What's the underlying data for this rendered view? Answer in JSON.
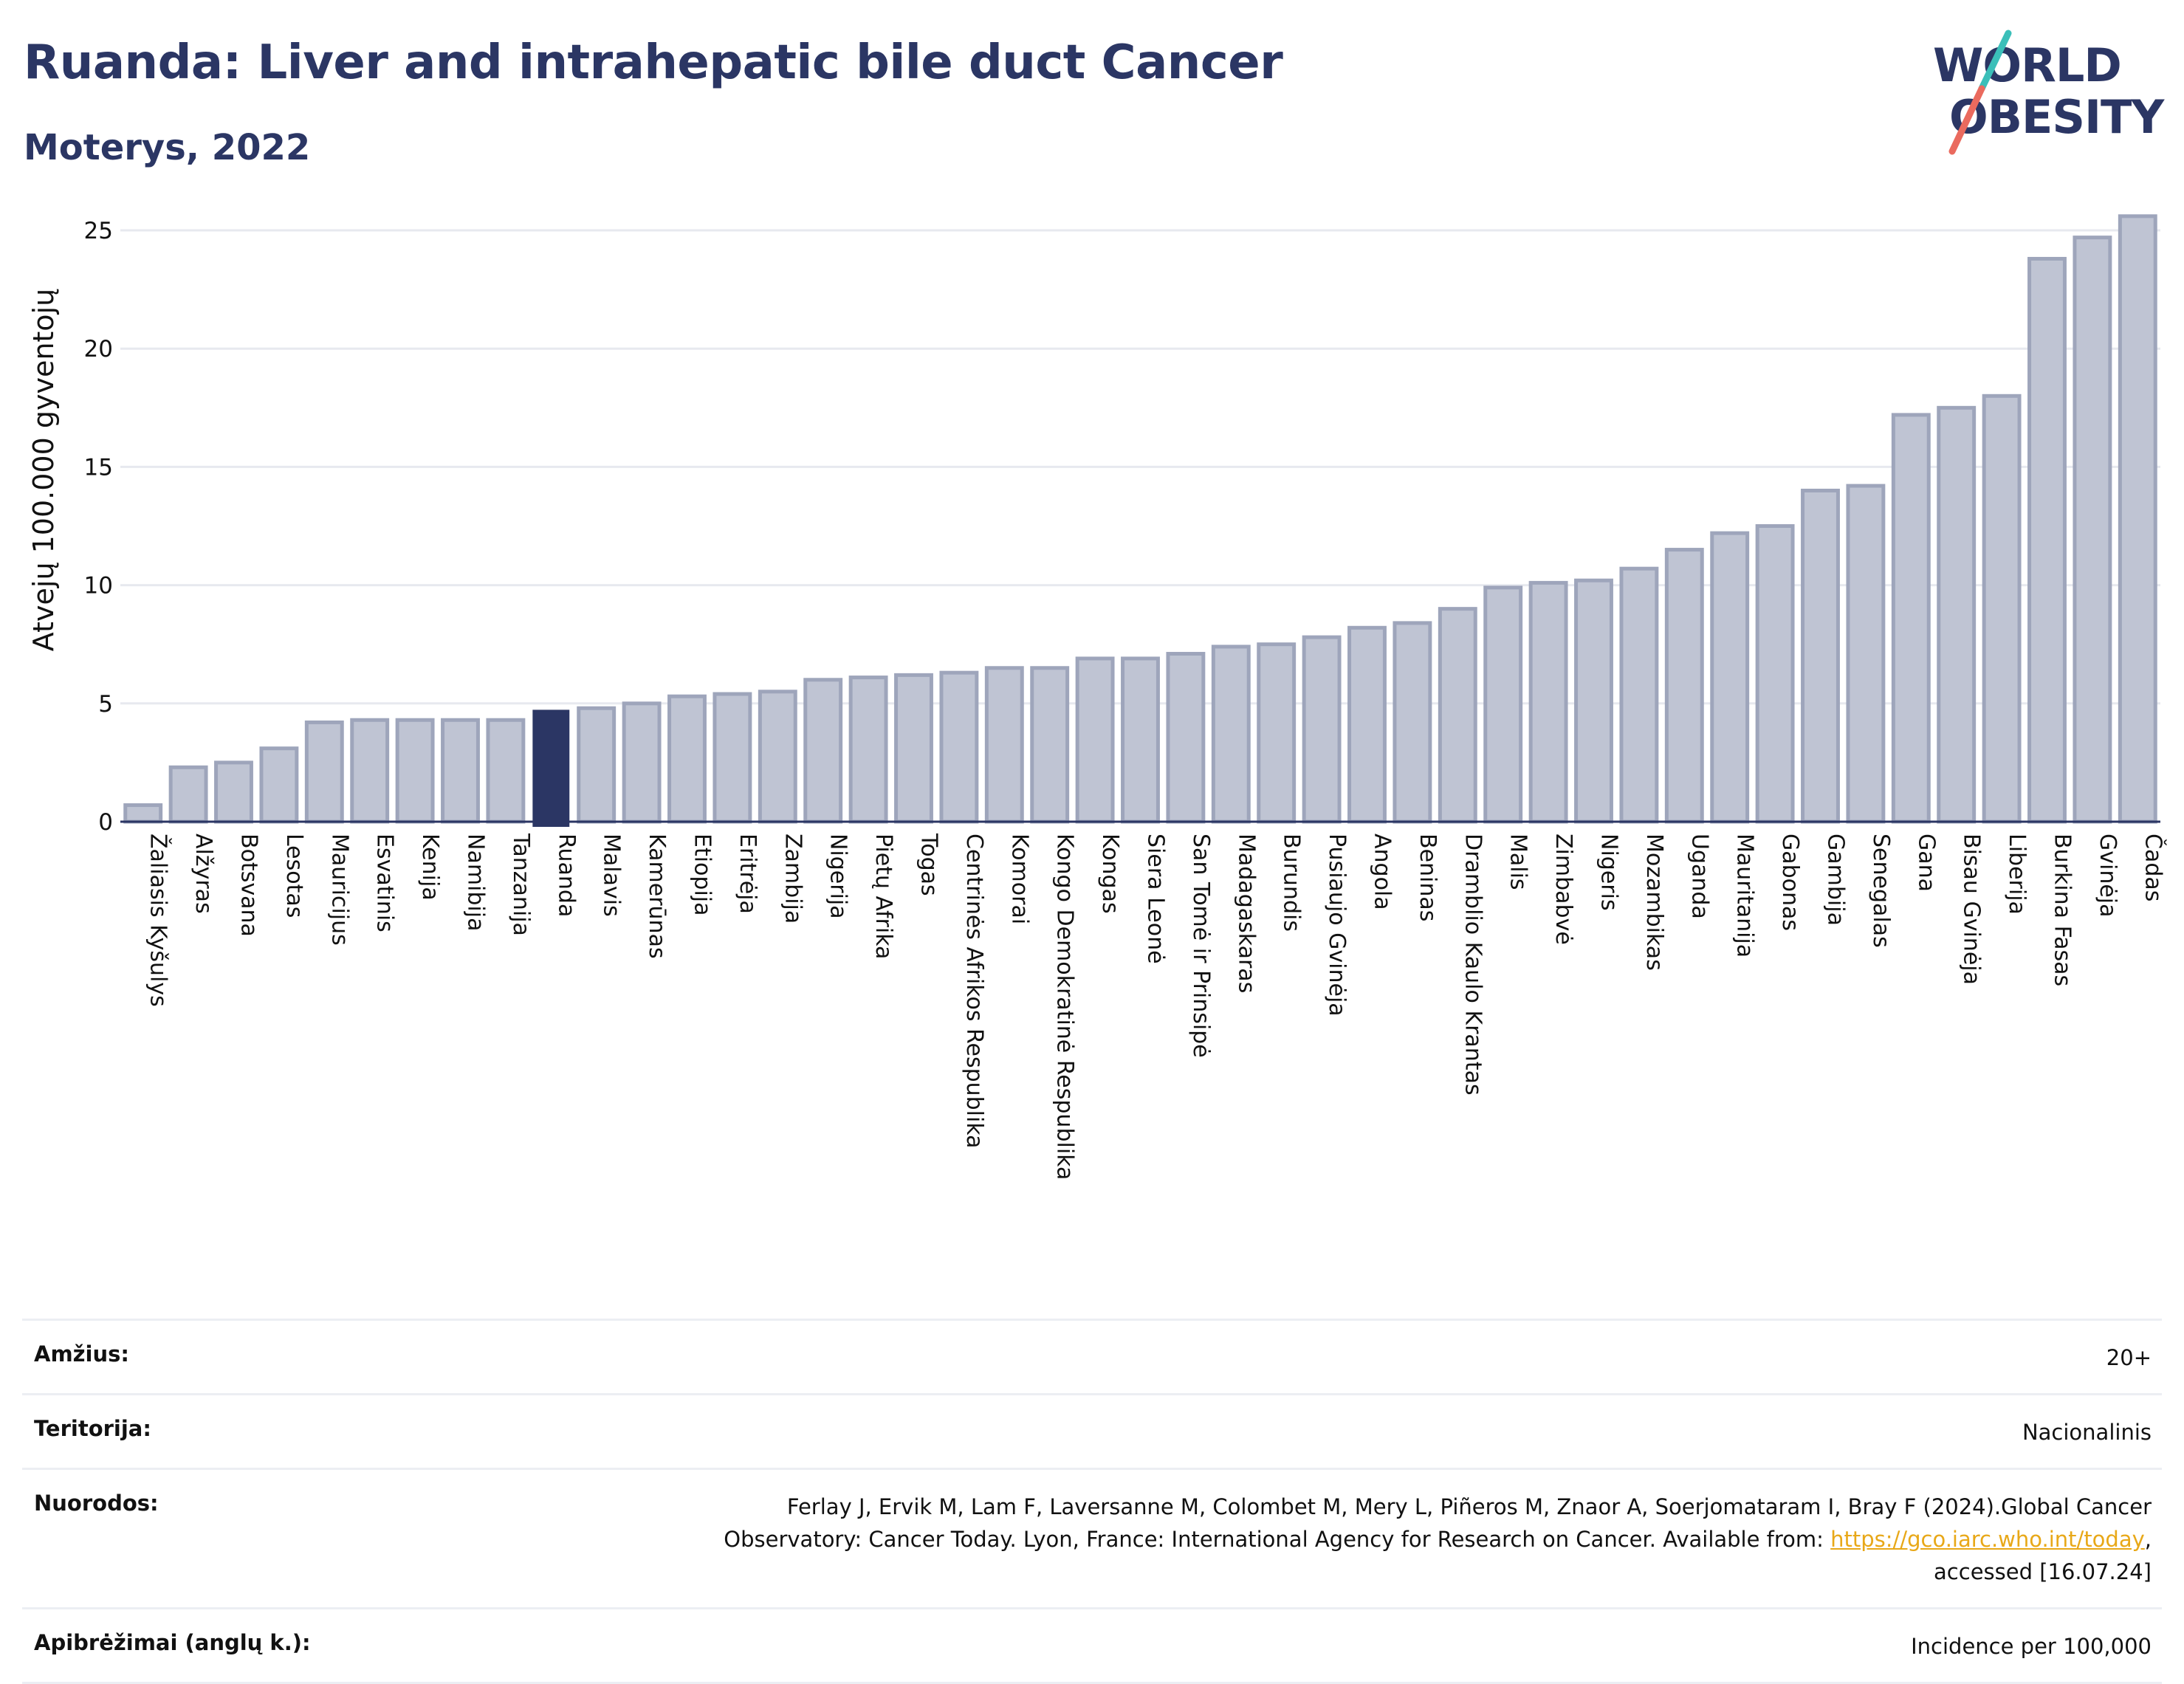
{
  "header": {
    "title": "Ruanda: Liver and intrahepatic bile duct Cancer",
    "subtitle": "Moterys, 2022"
  },
  "logo": {
    "line1": "WORLD",
    "line2": "OBESITY",
    "colors": {
      "text": "#2b3664",
      "slash_teal": "#3bbfb9",
      "slash_red": "#ea6a5e"
    }
  },
  "colors": {
    "bar": "#bfc4d3",
    "bar_stroke": "#9ea5bb",
    "highlight": "#2b3664",
    "grid": "#e7e9ef",
    "axis": "#2b3664"
  },
  "chart_data": {
    "type": "bar",
    "ylabel": "Atvejų 100.000 gyventojų",
    "xlabel": "",
    "ylim": [
      0,
      26
    ],
    "yticks": [
      0,
      5,
      10,
      15,
      20,
      25
    ],
    "grid": true,
    "highlight": "Ruanda",
    "categories": [
      "Žaliasis Kyšulys",
      "Alžyras",
      "Botsvana",
      "Lesotas",
      "Mauricijus",
      "Esvatinis",
      "Kenija",
      "Namibija",
      "Tanzanija",
      "Ruanda",
      "Malavis",
      "Kamerūnas",
      "Etiopija",
      "Eritrėja",
      "Zambija",
      "Nigerija",
      "Pietų Afrika",
      "Togas",
      "Centrinės Afrikos Respublika",
      "Komorai",
      "Kongo Demokratinė Respublika",
      "Kongas",
      "Siera Leonė",
      "San Tomė ir Prinsipė",
      "Madagaskaras",
      "Burundis",
      "Pusiaujo Gvinėja",
      "Angola",
      "Beninas",
      "Dramblio Kaulo Krantas",
      "Malis",
      "Zimbabvė",
      "Nigeris",
      "Mozambikas",
      "Uganda",
      "Mauritanija",
      "Gabonas",
      "Gambija",
      "Senegalas",
      "Gana",
      "Bisau Gvinėja",
      "Liberija",
      "Burkina Fasas",
      "Gvinėja",
      "Čadas"
    ],
    "values": [
      0.7,
      2.3,
      2.5,
      3.1,
      4.2,
      4.3,
      4.3,
      4.3,
      4.3,
      4.7,
      4.8,
      5.0,
      5.3,
      5.4,
      5.5,
      6.0,
      6.1,
      6.2,
      6.3,
      6.5,
      6.5,
      6.9,
      6.9,
      7.1,
      7.4,
      7.5,
      7.8,
      8.2,
      8.4,
      9.0,
      9.9,
      10.1,
      10.2,
      10.7,
      11.5,
      12.2,
      12.5,
      14.0,
      14.2,
      17.2,
      17.5,
      18.0,
      23.8,
      24.7,
      25.6
    ]
  },
  "info": {
    "rows": [
      {
        "key": "Amžius:",
        "value": "20+"
      },
      {
        "key": "Teritorija:",
        "value": "Nacionalinis"
      },
      {
        "key": "Nuorodos:",
        "value_line1": "Ferlay J, Ervik M, Lam F, Laversanne M, Colombet M, Mery L, Piñeros M, Znaor A, Soerjomataram I, Bray F (2024).Global Cancer",
        "value_line2": "Observatory: Cancer Today. Lyon, France: International Agency for Research on Cancer. Available from: ",
        "link": "https://gco.iarc.who.int/today",
        "value_line2_end": ",",
        "value_line3": "accessed [16.07.24]"
      },
      {
        "key": "Apibrėžimai (anglų k.):",
        "value": "Incidence per 100,000"
      }
    ]
  }
}
